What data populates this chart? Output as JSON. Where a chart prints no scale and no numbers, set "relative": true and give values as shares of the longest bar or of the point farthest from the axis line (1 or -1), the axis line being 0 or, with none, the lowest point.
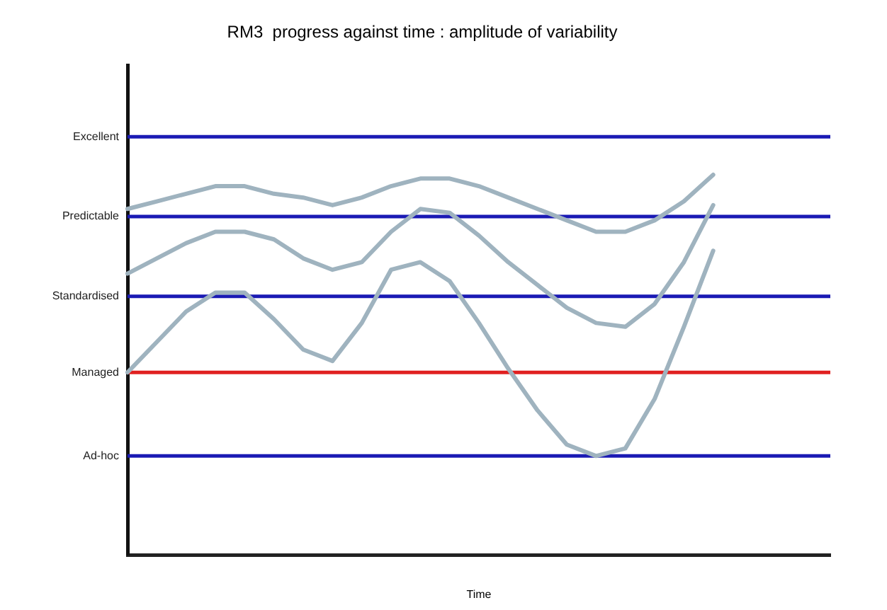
{
  "chart_data": {
    "type": "line",
    "title": "RM3  progress against time : amplitude of variability",
    "xlabel": "Time",
    "relative": true,
    "categories": [
      null,
      null,
      null,
      null,
      null,
      null,
      null,
      null,
      null,
      null,
      null,
      null,
      null,
      null,
      null,
      null,
      null,
      null,
      null,
      null,
      null,
      null,
      null,
      null,
      null
    ],
    "legend": false,
    "marker": "none",
    "line_style": "solid",
    "ref_lines": [
      {
        "axis": "y",
        "value": 1.1,
        "label": "Excellent",
        "color": "#1a1ab4"
      },
      {
        "axis": "y",
        "value": 0.89,
        "label": "Predictable",
        "color": "#1a1ab4"
      },
      {
        "axis": "y",
        "value": 0.68,
        "label": "Standardised",
        "color": "#1a1ab4"
      },
      {
        "axis": "y",
        "value": 0.48,
        "label": "Managed",
        "color": "#e02020"
      },
      {
        "axis": "y",
        "value": 0.26,
        "label": "Ad-hoc",
        "color": "#1a1ab4"
      }
    ],
    "series": [
      {
        "color": "#9fb3bf",
        "values": [
          0.91,
          0.93,
          0.95,
          0.97,
          0.97,
          0.95,
          0.94,
          0.92,
          0.94,
          0.97,
          0.99,
          0.99,
          0.97,
          0.94,
          0.91,
          0.88,
          0.85,
          0.85,
          0.88,
          0.93,
          1,
          null,
          null,
          null,
          null
        ]
      },
      {
        "color": "#9fb3bf",
        "values": [
          0.74,
          0.78,
          0.82,
          0.85,
          0.85,
          0.83,
          0.78,
          0.75,
          0.77,
          0.85,
          0.91,
          0.9,
          0.84,
          0.77,
          0.71,
          0.65,
          0.61,
          0.6,
          0.66,
          0.77,
          0.92,
          null,
          null,
          null,
          null
        ]
      },
      {
        "color": "#9fb3bf",
        "values": [
          0.48,
          0.56,
          0.64,
          0.69,
          0.69,
          0.62,
          0.54,
          0.51,
          0.61,
          0.75,
          0.77,
          0.72,
          0.61,
          0.49,
          0.38,
          0.29,
          0.26,
          0.28,
          0.41,
          0.6,
          0.8,
          null,
          null,
          null,
          null
        ]
      }
    ]
  }
}
